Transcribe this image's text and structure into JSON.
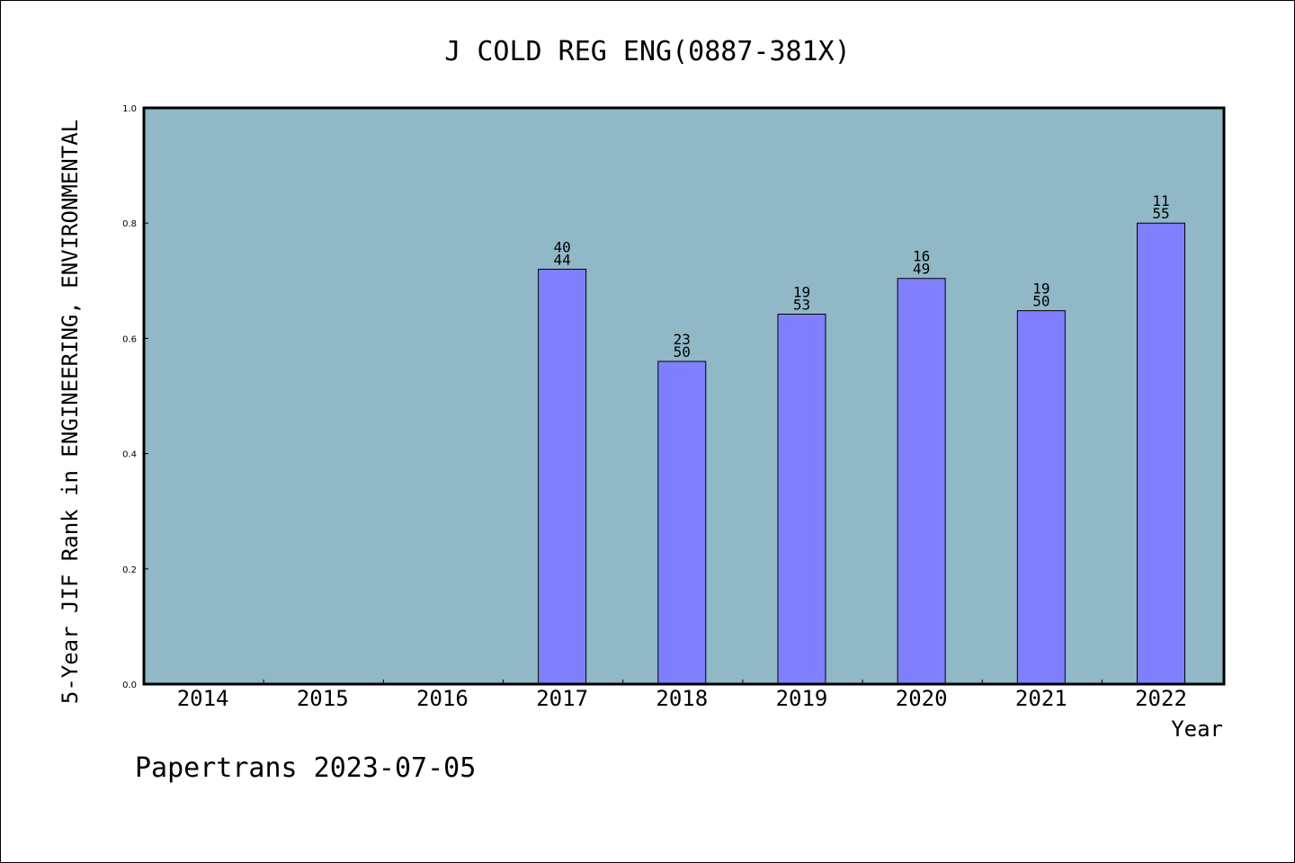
{
  "chart_data": {
    "type": "bar",
    "title": "J COLD REG ENG(0887-381X)",
    "xlabel": "Year",
    "ylabel": "5-Year JIF Rank in ENGINEERING, ENVIRONMENTAL",
    "categories": [
      "2014",
      "2015",
      "2016",
      "2017",
      "2018",
      "2019",
      "2020",
      "2021",
      "2022"
    ],
    "values": [
      null,
      null,
      null,
      0.72,
      0.56,
      0.642,
      0.704,
      0.648,
      0.8
    ],
    "data_labels": [
      null,
      null,
      null,
      {
        "rank": "40",
        "total": "44"
      },
      {
        "rank": "23",
        "total": "50"
      },
      {
        "rank": "19",
        "total": "53"
      },
      {
        "rank": "16",
        "total": "49"
      },
      {
        "rank": "19",
        "total": "50"
      },
      {
        "rank": "11",
        "total": "55"
      }
    ],
    "ylim": [
      0,
      1.0
    ],
    "yticks": [
      "0.0",
      "0.2",
      "0.4",
      "0.6",
      "0.8",
      "1.0"
    ],
    "grid": false,
    "colors": {
      "plot_background": "#90b8c6",
      "bar": "#8080ff",
      "bar_edge": "#000000"
    }
  },
  "footer": "Papertrans 2023-07-05"
}
